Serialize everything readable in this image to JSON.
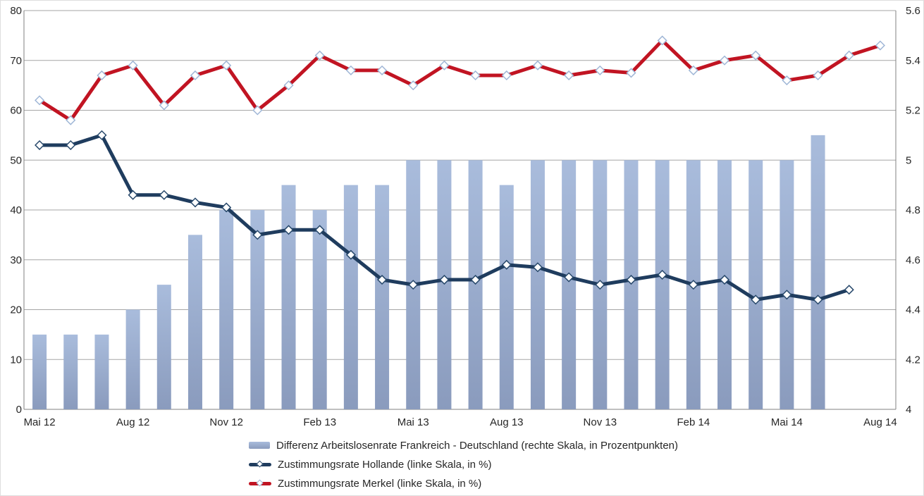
{
  "chart_data": {
    "type": "combo-bar-line",
    "categories": [
      "Mai 12",
      "Jun 12",
      "Jul 12",
      "Aug 12",
      "Sep 12",
      "Okt 12",
      "Nov 12",
      "Dez 12",
      "Jan 13",
      "Feb 13",
      "Mär 13",
      "Apr 13",
      "Mai 13",
      "Jun 13",
      "Jul 13",
      "Aug 13",
      "Sep 13",
      "Okt 13",
      "Nov 13",
      "Dez 13",
      "Jan 14",
      "Feb 14",
      "Mär 14",
      "Apr 14",
      "Mai 14",
      "Jun 14",
      "Jul 14",
      "Aug 14"
    ],
    "x_label_every": 3,
    "left_axis": {
      "min": 0,
      "max": 80,
      "ticks": [
        "0",
        "10",
        "20",
        "30",
        "40",
        "50",
        "60",
        "70",
        "80"
      ]
    },
    "right_axis": {
      "min": 4,
      "max": 5.6,
      "ticks": [
        "4",
        "4.2",
        "4.4",
        "4.6",
        "4.8",
        "5",
        "5.2",
        "5.4",
        "5.6"
      ]
    },
    "grid": true,
    "legend_position": "bottom",
    "series": [
      {
        "name": "Differenz Arbeitslosenrate Frankreich - Deutschland (rechte Skala, in Prozentpunkten)",
        "type": "bar",
        "axis": "right",
        "color_top": "#A9BCDC",
        "color_bottom": "#8A9BBD",
        "values": [
          4.3,
          4.3,
          4.3,
          4.4,
          4.5,
          4.7,
          4.8,
          4.8,
          4.9,
          4.8,
          4.9,
          4.9,
          5,
          5,
          5,
          4.9,
          5,
          5,
          5,
          5,
          5,
          5,
          5,
          5,
          5,
          5.1,
          null,
          null
        ]
      },
      {
        "name": "Zustimmungsrate Hollande (linke Skala, in %)",
        "type": "line",
        "axis": "left",
        "color": "#1F3C5E",
        "marker_stroke": "#27486B",
        "values": [
          53,
          53,
          55,
          43,
          43,
          41.5,
          40.5,
          35,
          36,
          36,
          31,
          26,
          25,
          26,
          26,
          29,
          28.5,
          26.5,
          25,
          26,
          27,
          25,
          26,
          22,
          23,
          22,
          24,
          null
        ]
      },
      {
        "name": "Zustimmungsrate Merkel (linke Skala, in %)",
        "type": "line",
        "axis": "left",
        "color": "#C11422",
        "marker_stroke": "#9FB6D6",
        "values": [
          62,
          58,
          67,
          69,
          61,
          67,
          69,
          60,
          65,
          71,
          68,
          68,
          65,
          69,
          67,
          67,
          69,
          67,
          68,
          67.5,
          74,
          68,
          70,
          71,
          66,
          67,
          71,
          73
        ]
      }
    ],
    "colors": {
      "gridline": "#A6A6A6",
      "axis_frame": "#808080",
      "text": "#262626",
      "background": "#FFFFFF"
    }
  }
}
